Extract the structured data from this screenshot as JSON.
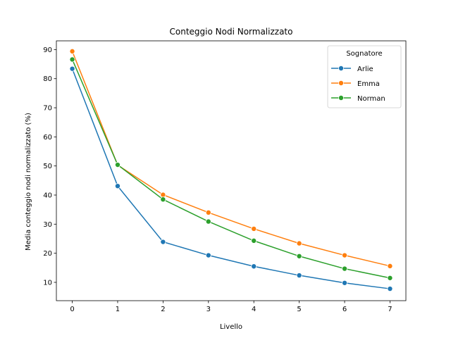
{
  "chart_data": {
    "type": "line",
    "title": "Conteggio Nodi Normalizzato",
    "xlabel": "Livello",
    "ylabel": "Media conteggio nodi normalizzato (%)",
    "x": [
      0,
      1,
      2,
      3,
      4,
      5,
      6,
      7
    ],
    "xlim": [
      -0.35,
      7.35
    ],
    "ylim": [
      3.7,
      93
    ],
    "xticks": [
      "0",
      "1",
      "2",
      "3",
      "4",
      "5",
      "6",
      "7"
    ],
    "yticks": [
      10,
      20,
      30,
      40,
      50,
      60,
      70,
      80,
      90
    ],
    "grid": false,
    "legend": {
      "title": "Sognatore",
      "placement": "top-right"
    },
    "series": [
      {
        "name": "Arlie",
        "color": "#1f77b4",
        "values": [
          83.4,
          43.1,
          23.9,
          19.3,
          15.5,
          12.4,
          9.8,
          7.8
        ]
      },
      {
        "name": "Emma",
        "color": "#ff7f0e",
        "values": [
          89.4,
          50.3,
          40.1,
          34.0,
          28.4,
          23.4,
          19.3,
          15.6
        ]
      },
      {
        "name": "Norman",
        "color": "#2ca02c",
        "values": [
          86.6,
          50.4,
          38.5,
          30.9,
          24.3,
          19.0,
          14.7,
          11.5
        ]
      }
    ]
  }
}
